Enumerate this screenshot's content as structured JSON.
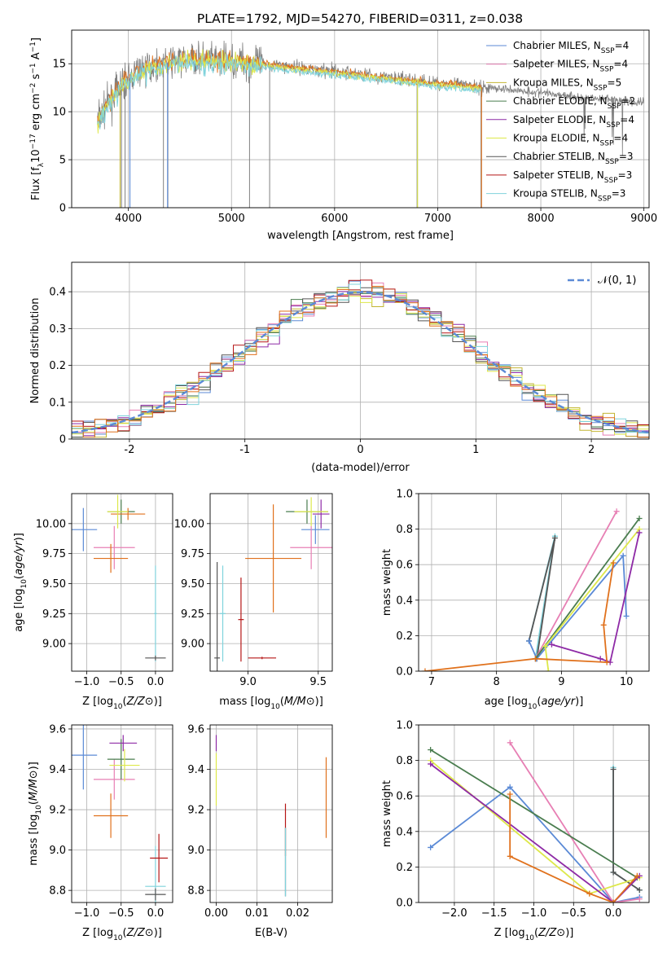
{
  "title": "PLATE=1792, MJD=54270, FIBERID=0311, z=0.038",
  "colors": {
    "chabrier_miles": "#5b8ad6",
    "salpeter_miles": "#e77fb4",
    "kroupa_miles": "#c2b532",
    "chabrier_elodie": "#4a7d4f",
    "salpeter_elodie": "#8e2aa6",
    "kroupa_elodie": "#dde84a",
    "chabrier_stelib": "#555555",
    "salpeter_stelib": "#b51616",
    "kroupa_stelib": "#7fd3dc",
    "data": "#808080",
    "orange": "#e0711c",
    "normal": "#5b8ad6",
    "grid": "#b0b0b0"
  },
  "chart_data": [
    {
      "id": "spectrum",
      "type": "line",
      "xlabel": "wavelength [Angstrom, rest frame]",
      "ylabel": "Flux [f_λ 10^-17 erg cm^-2 s^-1 A^-1]",
      "xlim": [
        3450,
        9050
      ],
      "ylim": [
        0,
        18.5
      ],
      "xticks": [
        4000,
        5000,
        6000,
        7000,
        8000,
        9000
      ],
      "yticks": [
        0,
        5,
        10,
        15
      ],
      "legend_position": "upper right",
      "legend": [
        {
          "label": "Chabrier MILES, N_SSP=4",
          "color_key": "chabrier_miles"
        },
        {
          "label": "Salpeter MILES, N_SSP=4",
          "color_key": "salpeter_miles"
        },
        {
          "label": "Kroupa MILES, N_SSP=5",
          "color_key": "kroupa_miles"
        },
        {
          "label": "Chabrier ELODIE, N_SSP=2",
          "color_key": "chabrier_elodie"
        },
        {
          "label": "Salpeter ELODIE, N_SSP=4",
          "color_key": "salpeter_elodie"
        },
        {
          "label": "Kroupa ELODIE, N_SSP=4",
          "color_key": "kroupa_elodie"
        },
        {
          "label": "Chabrier STELIB, N_SSP=3",
          "color_key": "chabrier_stelib"
        },
        {
          "label": "Salpeter STELIB, N_SSP=3",
          "color_key": "salpeter_stelib"
        },
        {
          "label": "Kroupa STELIB, N_SSP=3",
          "color_key": "kroupa_stelib"
        }
      ],
      "continuum": [
        [
          3700,
          9.0
        ],
        [
          3800,
          11.0
        ],
        [
          3950,
          13.0
        ],
        [
          4100,
          14.3
        ],
        [
          4300,
          15.0
        ],
        [
          4600,
          15.5
        ],
        [
          5000,
          15.3
        ],
        [
          5500,
          14.8
        ],
        [
          6000,
          14.2
        ],
        [
          6500,
          13.6
        ],
        [
          7000,
          13.0
        ],
        [
          7400,
          12.6
        ],
        [
          8000,
          12.0
        ],
        [
          8500,
          11.4
        ],
        [
          9000,
          11.0
        ]
      ],
      "model_range": [
        3700,
        7420
      ],
      "data_range": [
        3700,
        9000
      ]
    },
    {
      "id": "residuals",
      "type": "line",
      "xlabel": "(data-model)/error",
      "ylabel": "Normed distribution",
      "xlim": [
        -2.5,
        2.5
      ],
      "ylim": [
        0,
        0.48
      ],
      "xticks": [
        -2,
        -1,
        0,
        1,
        2
      ],
      "yticks": [
        0.0,
        0.1,
        0.2,
        0.3,
        0.4
      ],
      "legend_position": "upper right",
      "normal_label": "𝒩(0, 1)",
      "bin_width": 0.1
    },
    {
      "id": "age_vs_Z",
      "type": "scatter",
      "xlabel": "Z [log10(Z/Z⊙)]",
      "ylabel": "age  [log10(age/yr)]",
      "xlim": [
        -1.22,
        0.25
      ],
      "ylim": [
        8.77,
        10.25
      ],
      "xticks": [
        -1.0,
        -0.5,
        0.0
      ],
      "xtick_labels": [
        "−1.0",
        "−0.5",
        "0.0"
      ],
      "yticks": [
        9.0,
        9.25,
        9.5,
        9.75,
        10.0
      ],
      "ytick_labels": [
        "9.00",
        "9.25",
        "9.50",
        "9.75",
        "10.00"
      ],
      "points": [
        {
          "c": "chabrier_miles",
          "x": -1.05,
          "y": 9.95,
          "xe": 0.2,
          "ye": 0.18
        },
        {
          "c": "salpeter_miles",
          "x": -0.6,
          "y": 9.8,
          "xe": 0.3,
          "ye": 0.18
        },
        {
          "c": "orange",
          "x": -0.65,
          "y": 9.71,
          "xe": 0.25,
          "ye": 0.12
        },
        {
          "c": "chabrier_elodie",
          "x": -0.5,
          "y": 10.1,
          "xe": 0.2,
          "ye": 0.1
        },
        {
          "c": "orange",
          "x": -0.4,
          "y": 10.08,
          "xe": 0.25,
          "ye": 0.05
        },
        {
          "c": "kroupa_elodie",
          "x": -0.55,
          "y": 10.1,
          "xe": 0.15,
          "ye": 0.14
        },
        {
          "c": "kroupa_stelib",
          "x": 0.0,
          "y": 9.25,
          "xe": 0.02,
          "ye": 0.4
        },
        {
          "c": "chabrier_stelib",
          "x": 0.0,
          "y": 8.88,
          "xe": 0.15,
          "ye": 0.02
        }
      ]
    },
    {
      "id": "age_vs_mass",
      "type": "scatter",
      "xlabel": "mass [log10(M/M⊙)]",
      "ylabel": "",
      "xlim": [
        8.73,
        9.6
      ],
      "ylim": [
        8.77,
        10.25
      ],
      "xticks": [
        9.0,
        9.5
      ],
      "xtick_labels": [
        "9.0",
        "9.5"
      ],
      "yticks": [
        9.0,
        9.25,
        9.5,
        9.75,
        10.0
      ],
      "ytick_labels": [
        "9.00",
        "9.25",
        "9.50",
        "9.75",
        "10.00"
      ],
      "points": [
        {
          "c": "chabrier_miles",
          "x": 9.48,
          "y": 9.95,
          "xe": 0.1,
          "ye": 0.12
        },
        {
          "c": "salpeter_miles",
          "x": 9.45,
          "y": 9.8,
          "xe": 0.15,
          "ye": 0.18
        },
        {
          "c": "orange",
          "x": 9.18,
          "y": 9.71,
          "xe": 0.2,
          "ye": 0.45
        },
        {
          "c": "chabrier_elodie",
          "x": 9.42,
          "y": 10.1,
          "xe": 0.15,
          "ye": 0.1
        },
        {
          "c": "salpeter_elodie",
          "x": 9.52,
          "y": 10.08,
          "xe": 0.06,
          "ye": 0.12
        },
        {
          "c": "kroupa_elodie",
          "x": 9.45,
          "y": 10.1,
          "xe": 0.12,
          "ye": 0.12
        },
        {
          "c": "kroupa_stelib",
          "x": 8.82,
          "y": 9.25,
          "xe": 0.02,
          "ye": 0.4
        },
        {
          "c": "salpeter_stelib",
          "x": 8.95,
          "y": 9.2,
          "xe": 0.02,
          "ye": 0.35
        },
        {
          "c": "chabrier_stelib",
          "x": 8.78,
          "y": 8.88,
          "xe": 0.02,
          "ye": 0.8
        },
        {
          "c": "salpeter_stelib",
          "x": 9.1,
          "y": 8.88,
          "xe": 0.1,
          "ye": 0.01
        }
      ]
    },
    {
      "id": "weight_vs_age",
      "type": "line",
      "xlabel": "age  [log10(age/yr)]",
      "ylabel": "mass weight",
      "xlim": [
        6.8,
        10.35
      ],
      "ylim": [
        0,
        1.0
      ],
      "xticks": [
        7,
        8,
        9,
        10
      ],
      "xtick_labels": [
        "7",
        "8",
        "9",
        "10"
      ],
      "yticks": [
        0,
        0.2,
        0.4,
        0.6,
        0.8,
        1.0
      ],
      "ytick_labels": [
        "0.0",
        "0.2",
        "0.4",
        "0.6",
        "0.8",
        "1.0"
      ],
      "series": [
        {
          "c": "kroupa_stelib",
          "x": [
            8.5,
            8.9,
            8.6
          ],
          "y": [
            0.17,
            0.76,
            0.07
          ]
        },
        {
          "c": "chabrier_stelib",
          "x": [
            8.5,
            8.9,
            8.62
          ],
          "y": [
            0.17,
            0.75,
            0.07
          ]
        },
        {
          "c": "chabrier_miles",
          "x": [
            8.5,
            8.62,
            9.95,
            10.0
          ],
          "y": [
            0.17,
            0.07,
            0.65,
            0.31
          ]
        },
        {
          "c": "salpeter_miles",
          "x": [
            8.6,
            9.85
          ],
          "y": [
            0.07,
            0.9
          ]
        },
        {
          "c": "chabrier_elodie",
          "x": [
            8.6,
            10.2
          ],
          "y": [
            0.07,
            0.86
          ]
        },
        {
          "c": "kroupa_elodie",
          "x": [
            8.8,
            8.75,
            10.2
          ],
          "y": [
            0.0,
            0.14,
            0.8
          ]
        },
        {
          "c": "salpeter_elodie",
          "x": [
            8.85,
            9.6,
            9.75,
            10.2
          ],
          "y": [
            0.15,
            0.07,
            0.05,
            0.78
          ]
        },
        {
          "c": "orange",
          "x": [
            6.9,
            8.6,
            9.7,
            9.65,
            9.8
          ],
          "y": [
            0.0,
            0.07,
            0.05,
            0.26,
            0.61
          ]
        }
      ]
    },
    {
      "id": "mass_vs_Z",
      "type": "scatter",
      "xlabel": "Z [log10(Z/Z⊙)]",
      "ylabel": "mass [log10(M/M⊙)]",
      "xlim": [
        -1.22,
        0.25
      ],
      "ylim": [
        8.74,
        9.62
      ],
      "xticks": [
        -1.0,
        -0.5,
        0.0
      ],
      "xtick_labels": [
        "−1.0",
        "−0.5",
        "0.0"
      ],
      "yticks": [
        8.8,
        9.0,
        9.2,
        9.4,
        9.6
      ],
      "ytick_labels": [
        "8.8",
        "9.0",
        "9.2",
        "9.4",
        "9.6"
      ],
      "points": [
        {
          "c": "chabrier_miles",
          "x": -1.05,
          "y": 9.47,
          "xe": 0.2,
          "ye": 0.17
        },
        {
          "c": "salpeter_miles",
          "x": -0.6,
          "y": 9.35,
          "xe": 0.3,
          "ye": 0.1
        },
        {
          "c": "orange",
          "x": -0.65,
          "y": 9.17,
          "xe": 0.25,
          "ye": 0.11
        },
        {
          "c": "chabrier_elodie",
          "x": -0.5,
          "y": 9.45,
          "xe": 0.2,
          "ye": 0.1
        },
        {
          "c": "salpeter_elodie",
          "x": -0.47,
          "y": 9.53,
          "xe": 0.2,
          "ye": 0.04
        },
        {
          "c": "kroupa_elodie",
          "x": -0.45,
          "y": 9.42,
          "xe": 0.22,
          "ye": 0.08
        },
        {
          "c": "kroupa_stelib",
          "x": 0.0,
          "y": 8.82,
          "xe": 0.15,
          "ye": 0.2
        },
        {
          "c": "salpeter_stelib",
          "x": 0.05,
          "y": 8.96,
          "xe": 0.13,
          "ye": 0.12
        },
        {
          "c": "chabrier_stelib",
          "x": 0.0,
          "y": 8.78,
          "xe": 0.15,
          "ye": 0.03
        }
      ]
    },
    {
      "id": "mass_vs_ebv",
      "type": "scatter",
      "xlabel": "E(B-V)",
      "ylabel": "",
      "xlim": [
        -0.0015,
        0.0285
      ],
      "ylim": [
        8.74,
        9.62
      ],
      "xticks": [
        0.0,
        0.01,
        0.02
      ],
      "xtick_labels": [
        "0.00",
        "0.01",
        "0.02"
      ],
      "yticks": [
        8.8,
        9.0,
        9.2,
        9.4,
        9.6
      ],
      "ytick_labels": [
        "8.8",
        "9.0",
        "9.2",
        "9.4",
        "9.6"
      ],
      "points": [
        {
          "c": "salpeter_elodie",
          "x": 0.0,
          "y": 9.53,
          "xe": 0,
          "ye": 0.04
        },
        {
          "c": "kroupa_elodie",
          "x": 0.0,
          "y": 9.35,
          "xe": 0,
          "ye": 0.13
        },
        {
          "c": "salpeter_stelib",
          "x": 0.017,
          "y": 9.1,
          "xe": 0,
          "ye": 0.13
        },
        {
          "c": "chabrier_stelib",
          "x": 0.017,
          "y": 8.94,
          "xe": 0,
          "ye": 0.17
        },
        {
          "c": "kroupa_stelib",
          "x": 0.017,
          "y": 8.94,
          "xe": 0,
          "ye": 0.17
        },
        {
          "c": "orange",
          "x": 0.027,
          "y": 9.26,
          "xe": 0,
          "ye": 0.2
        }
      ]
    },
    {
      "id": "weight_vs_Z",
      "type": "line",
      "xlabel": "Z [log10(Z/Z⊙)]",
      "ylabel": "mass weight",
      "xlim": [
        -2.45,
        0.45
      ],
      "ylim": [
        0,
        1.0
      ],
      "xticks": [
        -2.0,
        -1.5,
        -1.0,
        -0.5,
        0.0
      ],
      "xtick_labels": [
        "−2.0",
        "−1.5",
        "−1.0",
        "−0.5",
        "0.0"
      ],
      "yticks": [
        0,
        0.2,
        0.4,
        0.6,
        0.8,
        1.0
      ],
      "ytick_labels": [
        "0.0",
        "0.2",
        "0.4",
        "0.6",
        "0.8",
        "1.0"
      ],
      "series": [
        {
          "c": "kroupa_stelib",
          "x": [
            0.0,
            0.0,
            0.33
          ],
          "y": [
            0.76,
            0.17,
            0.07
          ]
        },
        {
          "c": "chabrier_stelib",
          "x": [
            0.0,
            0.0,
            0.33
          ],
          "y": [
            0.75,
            0.17,
            0.07
          ]
        },
        {
          "c": "chabrier_miles",
          "x": [
            -2.3,
            -1.3,
            0.0,
            0.33
          ],
          "y": [
            0.31,
            0.65,
            0.0,
            0.03
          ]
        },
        {
          "c": "salpeter_miles",
          "x": [
            -1.3,
            0.0,
            0.33
          ],
          "y": [
            0.9,
            0.0,
            0.02
          ]
        },
        {
          "c": "chabrier_elodie",
          "x": [
            -2.3,
            0.3
          ],
          "y": [
            0.86,
            0.14
          ]
        },
        {
          "c": "kroupa_elodie",
          "x": [
            -2.3,
            -0.3,
            0.33
          ],
          "y": [
            0.8,
            0.05,
            0.14
          ]
        },
        {
          "c": "salpeter_elodie",
          "x": [
            -2.3,
            0.0,
            0.33
          ],
          "y": [
            0.78,
            0.0,
            0.15
          ]
        },
        {
          "c": "orange",
          "x": [
            -1.3,
            -1.3,
            -0.3,
            0.0,
            0.3
          ],
          "y": [
            0.61,
            0.26,
            0.05,
            0.0,
            0.15
          ]
        }
      ]
    }
  ]
}
